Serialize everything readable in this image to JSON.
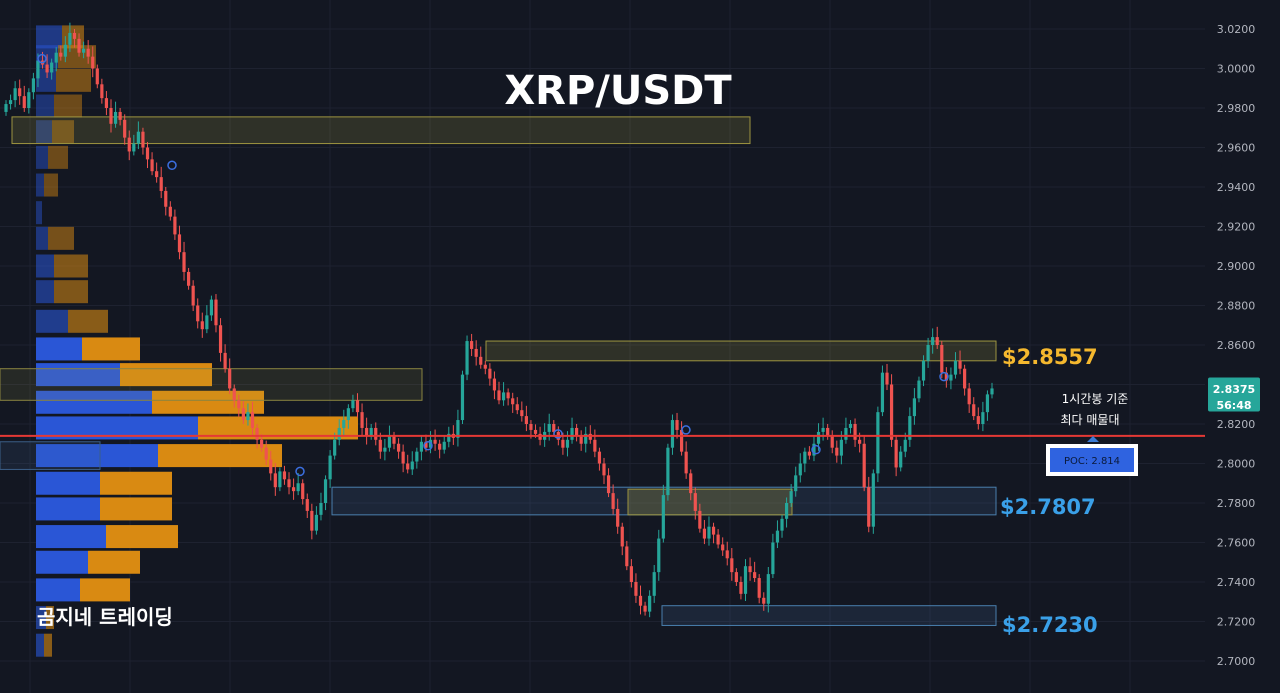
{
  "title": "XRP/USDT",
  "brand": "곰지네 트레이딩",
  "price_badge": {
    "price": "2.8375",
    "countdown": "56:48",
    "color": "#26a69a"
  },
  "note": {
    "line1": "1시간봉 기준",
    "line2": "최다 매물대"
  },
  "poc": {
    "label": "POC: 2.814",
    "value": 2.814,
    "line_color": "#e53935"
  },
  "levels": [
    {
      "label": "$2.8557",
      "color": "#f5b82e"
    },
    {
      "label": "$2.7807",
      "color": "#3aa0e8"
    },
    {
      "label": "$2.7230",
      "color": "#3aa0e8"
    }
  ],
  "colors": {
    "background": "#131722",
    "up": "#26a69a",
    "down": "#ef5350",
    "profile_blue": "#2a56d6",
    "profile_orange": "#d98a12",
    "grid": "#1e2230"
  },
  "chart_data": {
    "type": "candlestick",
    "ylim": [
      2.695,
      3.025
    ],
    "y_ticks": [
      "3.0200",
      "3.0000",
      "2.9800",
      "2.9600",
      "2.9400",
      "2.9200",
      "2.9000",
      "2.8800",
      "2.8600",
      "2.8400",
      "2.8200",
      "2.8000",
      "2.7800",
      "2.7600",
      "2.7400",
      "2.7200",
      "2.7000"
    ],
    "close": [
      2.982,
      2.984,
      2.99,
      2.986,
      2.98,
      2.988,
      2.995,
      3.004,
      3.002,
      2.998,
      3.003,
      3.008,
      3.006,
      3.012,
      3.018,
      3.015,
      3.008,
      3.01,
      3.006,
      3.0,
      2.992,
      2.985,
      2.98,
      2.972,
      2.978,
      2.974,
      2.965,
      2.958,
      2.962,
      2.968,
      2.96,
      2.954,
      2.948,
      2.945,
      2.938,
      2.93,
      2.925,
      2.916,
      2.907,
      2.897,
      2.89,
      2.88,
      2.872,
      2.868,
      2.875,
      2.883,
      2.87,
      2.856,
      2.848,
      2.838,
      2.832,
      2.828,
      2.822,
      2.826,
      2.818,
      2.812,
      2.808,
      2.802,
      2.795,
      2.788,
      2.796,
      2.792,
      2.788,
      2.786,
      2.79,
      2.782,
      2.776,
      2.766,
      2.774,
      2.78,
      2.792,
      2.804,
      2.812,
      2.818,
      2.822,
      2.828,
      2.832,
      2.826,
      2.818,
      2.814,
      2.818,
      2.812,
      2.806,
      2.808,
      2.814,
      2.81,
      2.806,
      2.8,
      2.797,
      2.801,
      2.806,
      2.811,
      2.808,
      2.812,
      2.81,
      2.807,
      2.811,
      2.815,
      2.813,
      2.822,
      2.845,
      2.862,
      2.858,
      2.854,
      2.85,
      2.848,
      2.843,
      2.837,
      2.832,
      2.836,
      2.833,
      2.83,
      2.827,
      2.824,
      2.82,
      2.817,
      2.815,
      2.812,
      2.816,
      2.82,
      2.816,
      2.812,
      2.808,
      2.812,
      2.818,
      2.814,
      2.81,
      2.815,
      2.812,
      2.806,
      2.8,
      2.794,
      2.785,
      2.777,
      2.768,
      2.758,
      2.748,
      2.74,
      2.733,
      2.728,
      2.725,
      2.733,
      2.745,
      2.762,
      2.784,
      2.808,
      2.822,
      2.817,
      2.806,
      2.795,
      2.785,
      2.776,
      2.767,
      2.762,
      2.768,
      2.764,
      2.759,
      2.756,
      2.752,
      2.745,
      2.74,
      2.734,
      2.748,
      2.745,
      2.742,
      2.732,
      2.729,
      2.744,
      2.76,
      2.766,
      2.772,
      2.78,
      2.786,
      2.794,
      2.8,
      2.806,
      2.804,
      2.81,
      2.816,
      2.818,
      2.814,
      2.808,
      2.804,
      2.812,
      2.818,
      2.82,
      2.812,
      2.81,
      2.788,
      2.768,
      2.795,
      2.826,
      2.846,
      2.84,
      2.812,
      2.798,
      2.806,
      2.812,
      2.824,
      2.833,
      2.842,
      2.852,
      2.86,
      2.864,
      2.86,
      2.846,
      2.842,
      2.845,
      2.852,
      2.848,
      2.838,
      2.83,
      2.824,
      2.82,
      2.826,
      2.835,
      2.838
    ]
  }
}
